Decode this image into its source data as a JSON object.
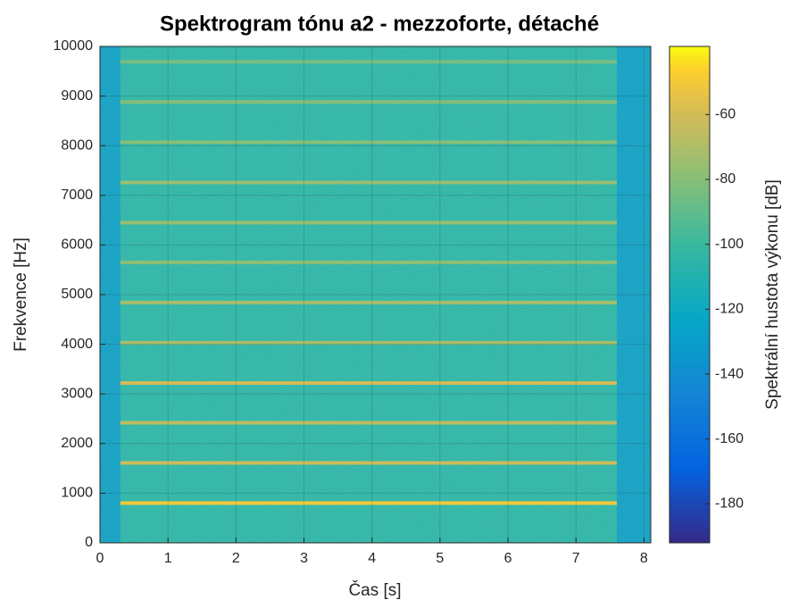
{
  "chart_data": {
    "type": "spectrogram",
    "title": "Spektrogram tónu a2 - mezzoforte, détaché",
    "xlabel": "Čas [s]",
    "ylabel": "Frekvence [Hz]",
    "colorbar_label": "Spektrální hustota výkonu [dB]",
    "xlim": [
      0,
      8.1
    ],
    "xticks": [
      0,
      1,
      2,
      3,
      4,
      5,
      6,
      7,
      8
    ],
    "ylim": [
      0,
      10000
    ],
    "yticks": [
      0,
      1000,
      2000,
      3000,
      4000,
      5000,
      6000,
      7000,
      8000,
      9000,
      10000
    ],
    "clim": [
      -192,
      -39
    ],
    "cticks": [
      -180,
      -160,
      -140,
      -120,
      -100,
      -80,
      -60
    ],
    "grid": true,
    "colormap": "parula",
    "background_level": -130,
    "tone_noise_level": -108,
    "tone_start": 0.3,
    "tone_end": 7.6,
    "harmonics": [
      800,
      1610,
      2420,
      3220,
      4030,
      4840,
      5650,
      6450,
      7260,
      8070,
      8880,
      9690
    ],
    "harmonic_levels": [
      -50,
      -62,
      -66,
      -60,
      -72,
      -72,
      -78,
      -76,
      -76,
      -80,
      -80,
      -84
    ]
  }
}
